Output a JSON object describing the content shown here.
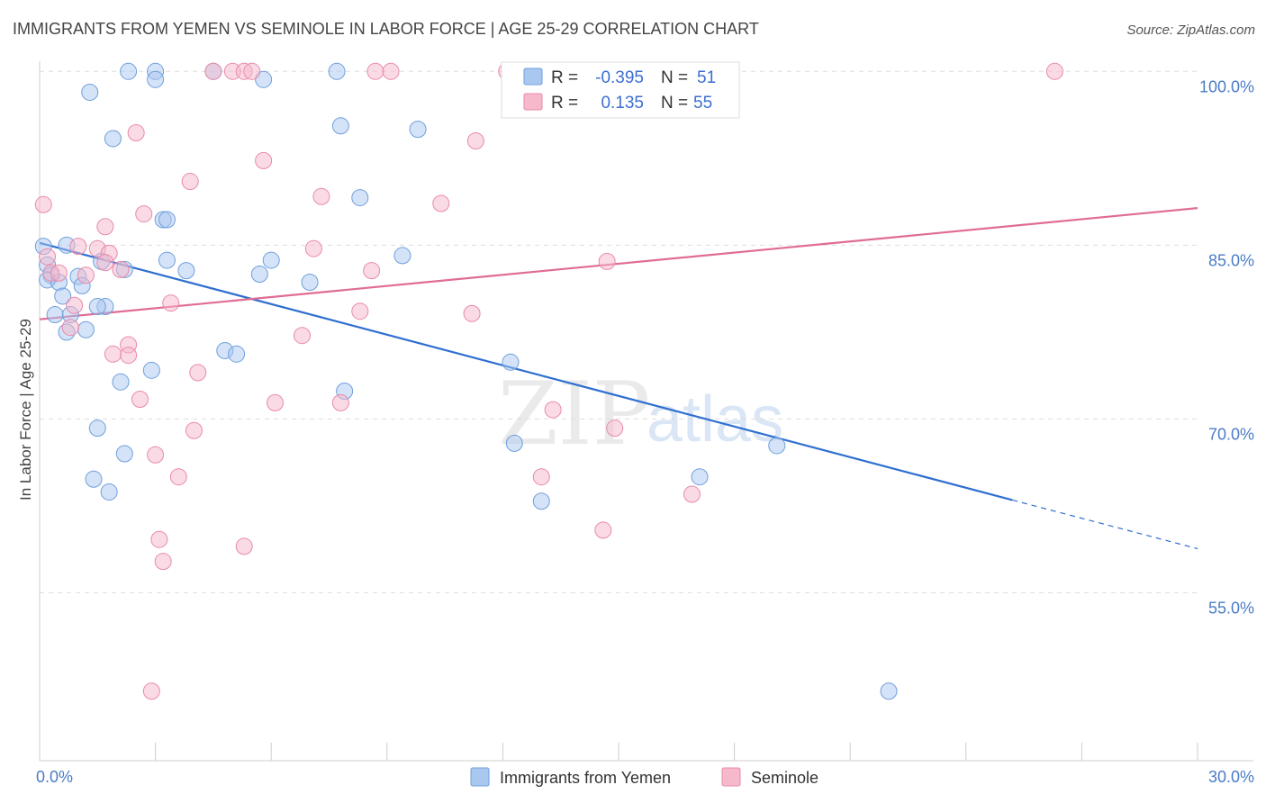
{
  "title": "IMMIGRANTS FROM YEMEN VS SEMINOLE IN LABOR FORCE | AGE 25-29 CORRELATION CHART",
  "source": "Source: ZipAtlas.com",
  "watermark": {
    "zip": "ZIP",
    "atlas": "atlas"
  },
  "colors": {
    "blue_fill": "#a9c8f0",
    "blue_stroke": "#6f9fdc",
    "blue_line": "#2f6fd0",
    "pink_fill": "#f6b8cb",
    "pink_stroke": "#e98aa9",
    "pink_line": "#e06c95",
    "grid": "#dddddd",
    "tick_text": "#4a7cc7"
  },
  "stats": [
    {
      "r_label": "R =",
      "r_value": "-0.395",
      "n_label": "N =",
      "n_value": "51"
    },
    {
      "r_label": "R =",
      "r_value": "0.135",
      "n_label": "N =",
      "n_value": "55"
    }
  ],
  "legend": [
    "Immigrants from Yemen",
    "Seminole"
  ],
  "chart_data": {
    "type": "scatter",
    "title": "IMMIGRANTS FROM YEMEN VS SEMINOLE IN LABOR FORCE | AGE 25-29 CORRELATION CHART",
    "xlabel": "",
    "ylabel": "In Labor Force | Age 25-29",
    "xlim": [
      0,
      30
    ],
    "ylim": [
      40.5,
      101.5
    ],
    "x_tick_labels": [
      {
        "value": 0,
        "label": "0.0%"
      },
      {
        "value": 30,
        "label": "30.0%"
      }
    ],
    "y_tick_labels": [
      {
        "value": 55,
        "label": "55.0%"
      },
      {
        "value": 70,
        "label": "70.0%"
      },
      {
        "value": 85,
        "label": "85.0%"
      },
      {
        "value": 100,
        "label": "100.0%"
      }
    ],
    "y_gridlines": [
      55,
      70,
      85,
      100
    ],
    "grid": true,
    "legend_position": "bottom-center",
    "series": [
      {
        "name": "Immigrants from Yemen",
        "color": "#a9c8f0",
        "trend": {
          "x0": 0.0,
          "y0": 85.2,
          "x1": 25.2,
          "y1": 63.0,
          "dashed_to_x": 30.0,
          "dashed_to_y": 58.8
        },
        "points": [
          [
            2.3,
            100
          ],
          [
            3.0,
            100
          ],
          [
            4.5,
            100
          ],
          [
            7.7,
            100
          ],
          [
            3.0,
            99.3
          ],
          [
            5.8,
            99.3
          ],
          [
            1.3,
            98.2
          ],
          [
            7.8,
            95.3
          ],
          [
            9.8,
            95.0
          ],
          [
            1.9,
            94.2
          ],
          [
            3.2,
            87.2
          ],
          [
            3.3,
            87.2
          ],
          [
            0.1,
            84.9
          ],
          [
            0.7,
            85.0
          ],
          [
            9.4,
            84.1
          ],
          [
            3.3,
            83.7
          ],
          [
            6.0,
            83.7
          ],
          [
            1.6,
            83.6
          ],
          [
            0.2,
            83.3
          ],
          [
            2.2,
            82.9
          ],
          [
            3.8,
            82.8
          ],
          [
            0.3,
            82.4
          ],
          [
            1.0,
            82.3
          ],
          [
            5.7,
            82.5
          ],
          [
            0.2,
            82.0
          ],
          [
            0.5,
            81.8
          ],
          [
            7.0,
            81.8
          ],
          [
            1.1,
            81.5
          ],
          [
            0.6,
            80.6
          ],
          [
            1.7,
            79.7
          ],
          [
            1.5,
            79.7
          ],
          [
            0.4,
            79.0
          ],
          [
            0.8,
            79.0
          ],
          [
            0.7,
            77.5
          ],
          [
            1.2,
            77.7
          ],
          [
            4.8,
            75.9
          ],
          [
            5.1,
            75.6
          ],
          [
            12.2,
            74.9
          ],
          [
            2.9,
            74.2
          ],
          [
            2.1,
            73.2
          ],
          [
            7.9,
            72.4
          ],
          [
            1.5,
            69.2
          ],
          [
            12.3,
            67.9
          ],
          [
            19.1,
            67.7
          ],
          [
            2.2,
            67.0
          ],
          [
            1.4,
            64.8
          ],
          [
            17.1,
            65.0
          ],
          [
            1.8,
            63.7
          ],
          [
            13.0,
            62.9
          ],
          [
            22.0,
            46.5
          ],
          [
            8.3,
            89.1
          ]
        ]
      },
      {
        "name": "Seminole",
        "color": "#f6b8cb",
        "trend": {
          "x0": 0.0,
          "y0": 78.6,
          "x1": 30.0,
          "y1": 88.2
        },
        "points": [
          [
            4.5,
            100
          ],
          [
            5.0,
            100
          ],
          [
            5.3,
            100
          ],
          [
            5.5,
            100
          ],
          [
            8.7,
            100
          ],
          [
            9.1,
            100
          ],
          [
            12.1,
            100
          ],
          [
            15.5,
            100
          ],
          [
            26.3,
            100
          ],
          [
            2.5,
            94.7
          ],
          [
            5.8,
            92.3
          ],
          [
            7.3,
            89.2
          ],
          [
            2.7,
            87.7
          ],
          [
            1.7,
            86.6
          ],
          [
            7.1,
            84.7
          ],
          [
            1.0,
            84.9
          ],
          [
            1.5,
            84.7
          ],
          [
            1.8,
            84.3
          ],
          [
            0.2,
            84.0
          ],
          [
            1.7,
            83.5
          ],
          [
            14.7,
            83.6
          ],
          [
            8.6,
            82.8
          ],
          [
            2.1,
            82.9
          ],
          [
            0.3,
            82.6
          ],
          [
            0.5,
            82.6
          ],
          [
            1.2,
            82.4
          ],
          [
            0.9,
            79.8
          ],
          [
            3.4,
            80.0
          ],
          [
            8.3,
            79.3
          ],
          [
            11.2,
            79.1
          ],
          [
            0.8,
            77.9
          ],
          [
            6.8,
            77.2
          ],
          [
            2.3,
            76.4
          ],
          [
            2.3,
            75.5
          ],
          [
            1.9,
            75.6
          ],
          [
            4.1,
            74.0
          ],
          [
            2.6,
            71.7
          ],
          [
            6.1,
            71.4
          ],
          [
            7.8,
            71.4
          ],
          [
            13.3,
            70.8
          ],
          [
            14.9,
            69.2
          ],
          [
            4.0,
            69.0
          ],
          [
            3.0,
            66.9
          ],
          [
            13.0,
            65.0
          ],
          [
            3.6,
            65.0
          ],
          [
            16.9,
            63.5
          ],
          [
            14.6,
            60.4
          ],
          [
            3.1,
            59.6
          ],
          [
            5.3,
            59.0
          ],
          [
            3.2,
            57.7
          ],
          [
            2.9,
            46.5
          ],
          [
            11.3,
            94.0
          ],
          [
            3.9,
            90.5
          ],
          [
            0.1,
            88.5
          ],
          [
            10.4,
            88.6
          ]
        ]
      }
    ]
  }
}
